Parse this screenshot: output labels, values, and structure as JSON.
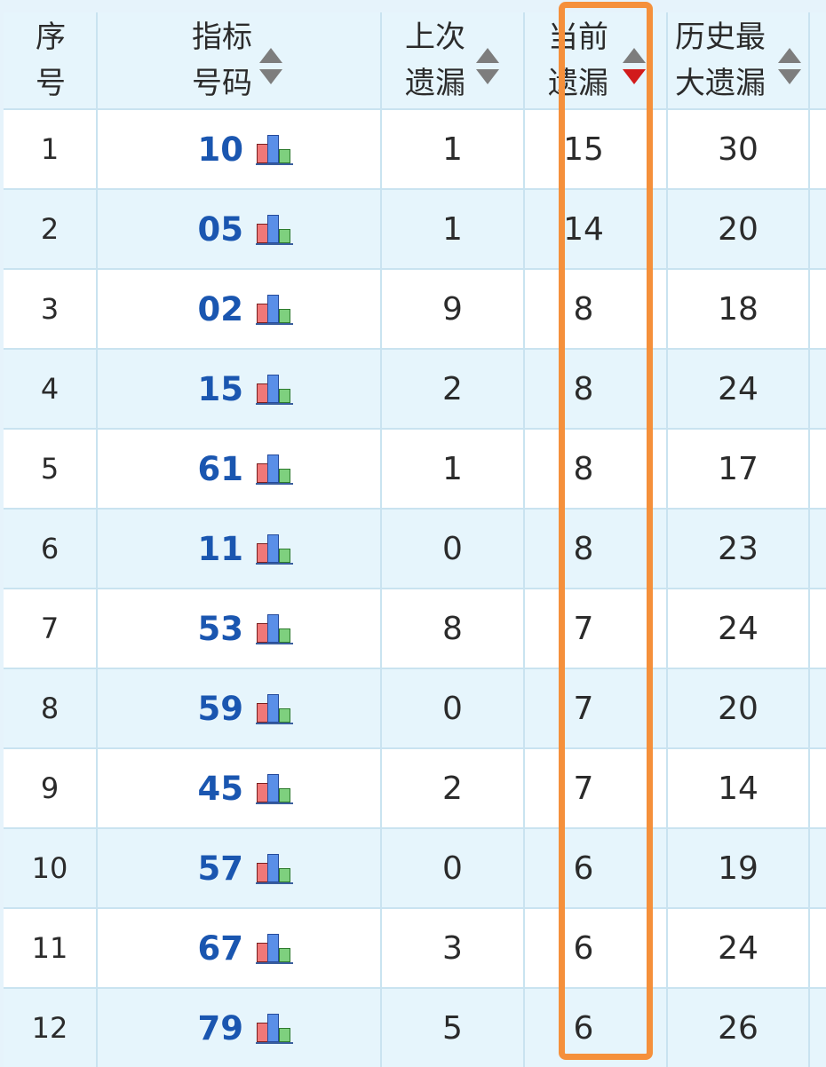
{
  "table": {
    "headers": {
      "index": [
        "序",
        "号"
      ],
      "code": [
        "指标",
        "号码"
      ],
      "last_miss": [
        "上次",
        "遗漏"
      ],
      "current_miss": [
        "当前",
        "遗漏"
      ],
      "max_miss": [
        "历史最",
        "大遗漏"
      ]
    },
    "sort": {
      "column": "current_miss",
      "direction": "desc"
    },
    "rows": [
      {
        "index": "1",
        "code": "10",
        "last_miss": "1",
        "current_miss": "15",
        "max_miss": "30"
      },
      {
        "index": "2",
        "code": "05",
        "last_miss": "1",
        "current_miss": "14",
        "max_miss": "20"
      },
      {
        "index": "3",
        "code": "02",
        "last_miss": "9",
        "current_miss": "8",
        "max_miss": "18"
      },
      {
        "index": "4",
        "code": "15",
        "last_miss": "2",
        "current_miss": "8",
        "max_miss": "24"
      },
      {
        "index": "5",
        "code": "61",
        "last_miss": "1",
        "current_miss": "8",
        "max_miss": "17"
      },
      {
        "index": "6",
        "code": "11",
        "last_miss": "0",
        "current_miss": "8",
        "max_miss": "23"
      },
      {
        "index": "7",
        "code": "53",
        "last_miss": "8",
        "current_miss": "7",
        "max_miss": "24"
      },
      {
        "index": "8",
        "code": "59",
        "last_miss": "0",
        "current_miss": "7",
        "max_miss": "20"
      },
      {
        "index": "9",
        "code": "45",
        "last_miss": "2",
        "current_miss": "7",
        "max_miss": "14"
      },
      {
        "index": "10",
        "code": "57",
        "last_miss": "0",
        "current_miss": "6",
        "max_miss": "19"
      },
      {
        "index": "11",
        "code": "67",
        "last_miss": "3",
        "current_miss": "6",
        "max_miss": "24"
      },
      {
        "index": "12",
        "code": "79",
        "last_miss": "5",
        "current_miss": "6",
        "max_miss": "26"
      }
    ]
  },
  "icons": {
    "code_chart": "bar-chart-icon",
    "sort": "sort-arrows-icon"
  },
  "colors": {
    "code_text": "#1a56b0",
    "highlight_border": "#f5903b",
    "row_alt_background": "#e6f5fc",
    "sort_active_arrow": "#d21b1b"
  }
}
